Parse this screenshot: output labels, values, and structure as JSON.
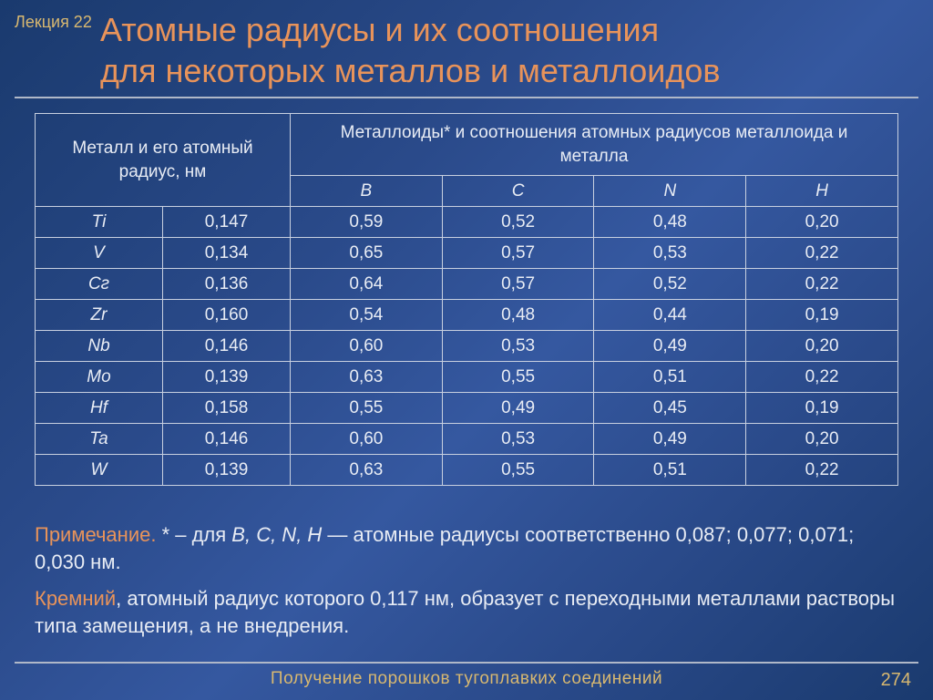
{
  "lecture_label": "Лекция 22",
  "title_line1": "Атомные радиусы и их соотношения",
  "title_line2": "для некоторых металлов и металлоидов",
  "header_left": "Металл и его атомный радиус, нм",
  "header_right": "Металлоиды* и соотношения атомных радиусов металлоида и металла",
  "sub_headers": [
    "B",
    "C",
    "N",
    "H"
  ],
  "rows": [
    {
      "metal": "Ti",
      "radius": "0,147",
      "ratios": [
        "0,59",
        "0,52",
        "0,48",
        "0,20"
      ]
    },
    {
      "metal": "V",
      "radius": "0,134",
      "ratios": [
        "0,65",
        "0,57",
        "0,53",
        "0,22"
      ]
    },
    {
      "metal": "Cг",
      "radius": "0,136",
      "ratios": [
        "0,64",
        "0,57",
        "0,52",
        "0,22"
      ]
    },
    {
      "metal": "Zr",
      "radius": "0,160",
      "ratios": [
        "0,54",
        "0,48",
        "0,44",
        "0,19"
      ]
    },
    {
      "metal": "Nb",
      "radius": "0,146",
      "ratios": [
        "0,60",
        "0,53",
        "0,49",
        "0,20"
      ]
    },
    {
      "metal": "Mo",
      "radius": "0,139",
      "ratios": [
        "0,63",
        "0,55",
        "0,51",
        "0,22"
      ]
    },
    {
      "metal": "Hf",
      "radius": "0,158",
      "ratios": [
        "0,55",
        "0,49",
        "0,45",
        "0,19"
      ]
    },
    {
      "metal": "Ta",
      "radius": "0,146",
      "ratios": [
        "0,60",
        "0,53",
        "0,49",
        "0,20"
      ]
    },
    {
      "metal": "W",
      "radius": "0,139",
      "ratios": [
        "0,63",
        "0,55",
        "0,51",
        "0,22"
      ]
    }
  ],
  "note1_label": "Примечание.",
  "note1_prefix": " * – для ",
  "note1_em": "B, C, N, H",
  "note1_rest": " — атомные радиусы соответственно 0,087; 0,077; 0,071; 0,030 нм.",
  "note2_label": "Кремний",
  "note2_body": ", атомный радиус которого 0,117 нм, образует с переходными металлами растворы типа замещения, а не внедрения.",
  "footer_text": "Получение порошков тугоплавких соединений",
  "page_number": "274",
  "colors": {
    "accent_orange": "#e8935a",
    "accent_gold": "#d8b870",
    "text_light": "#e8ecf4",
    "border": "#c8d0e0",
    "bg_start": "#1a3a6e",
    "bg_mid": "#3558a0"
  },
  "typography": {
    "title_fontsize": 36,
    "body_fontsize": 19,
    "note_fontsize": 22,
    "footer_fontsize": 19
  }
}
